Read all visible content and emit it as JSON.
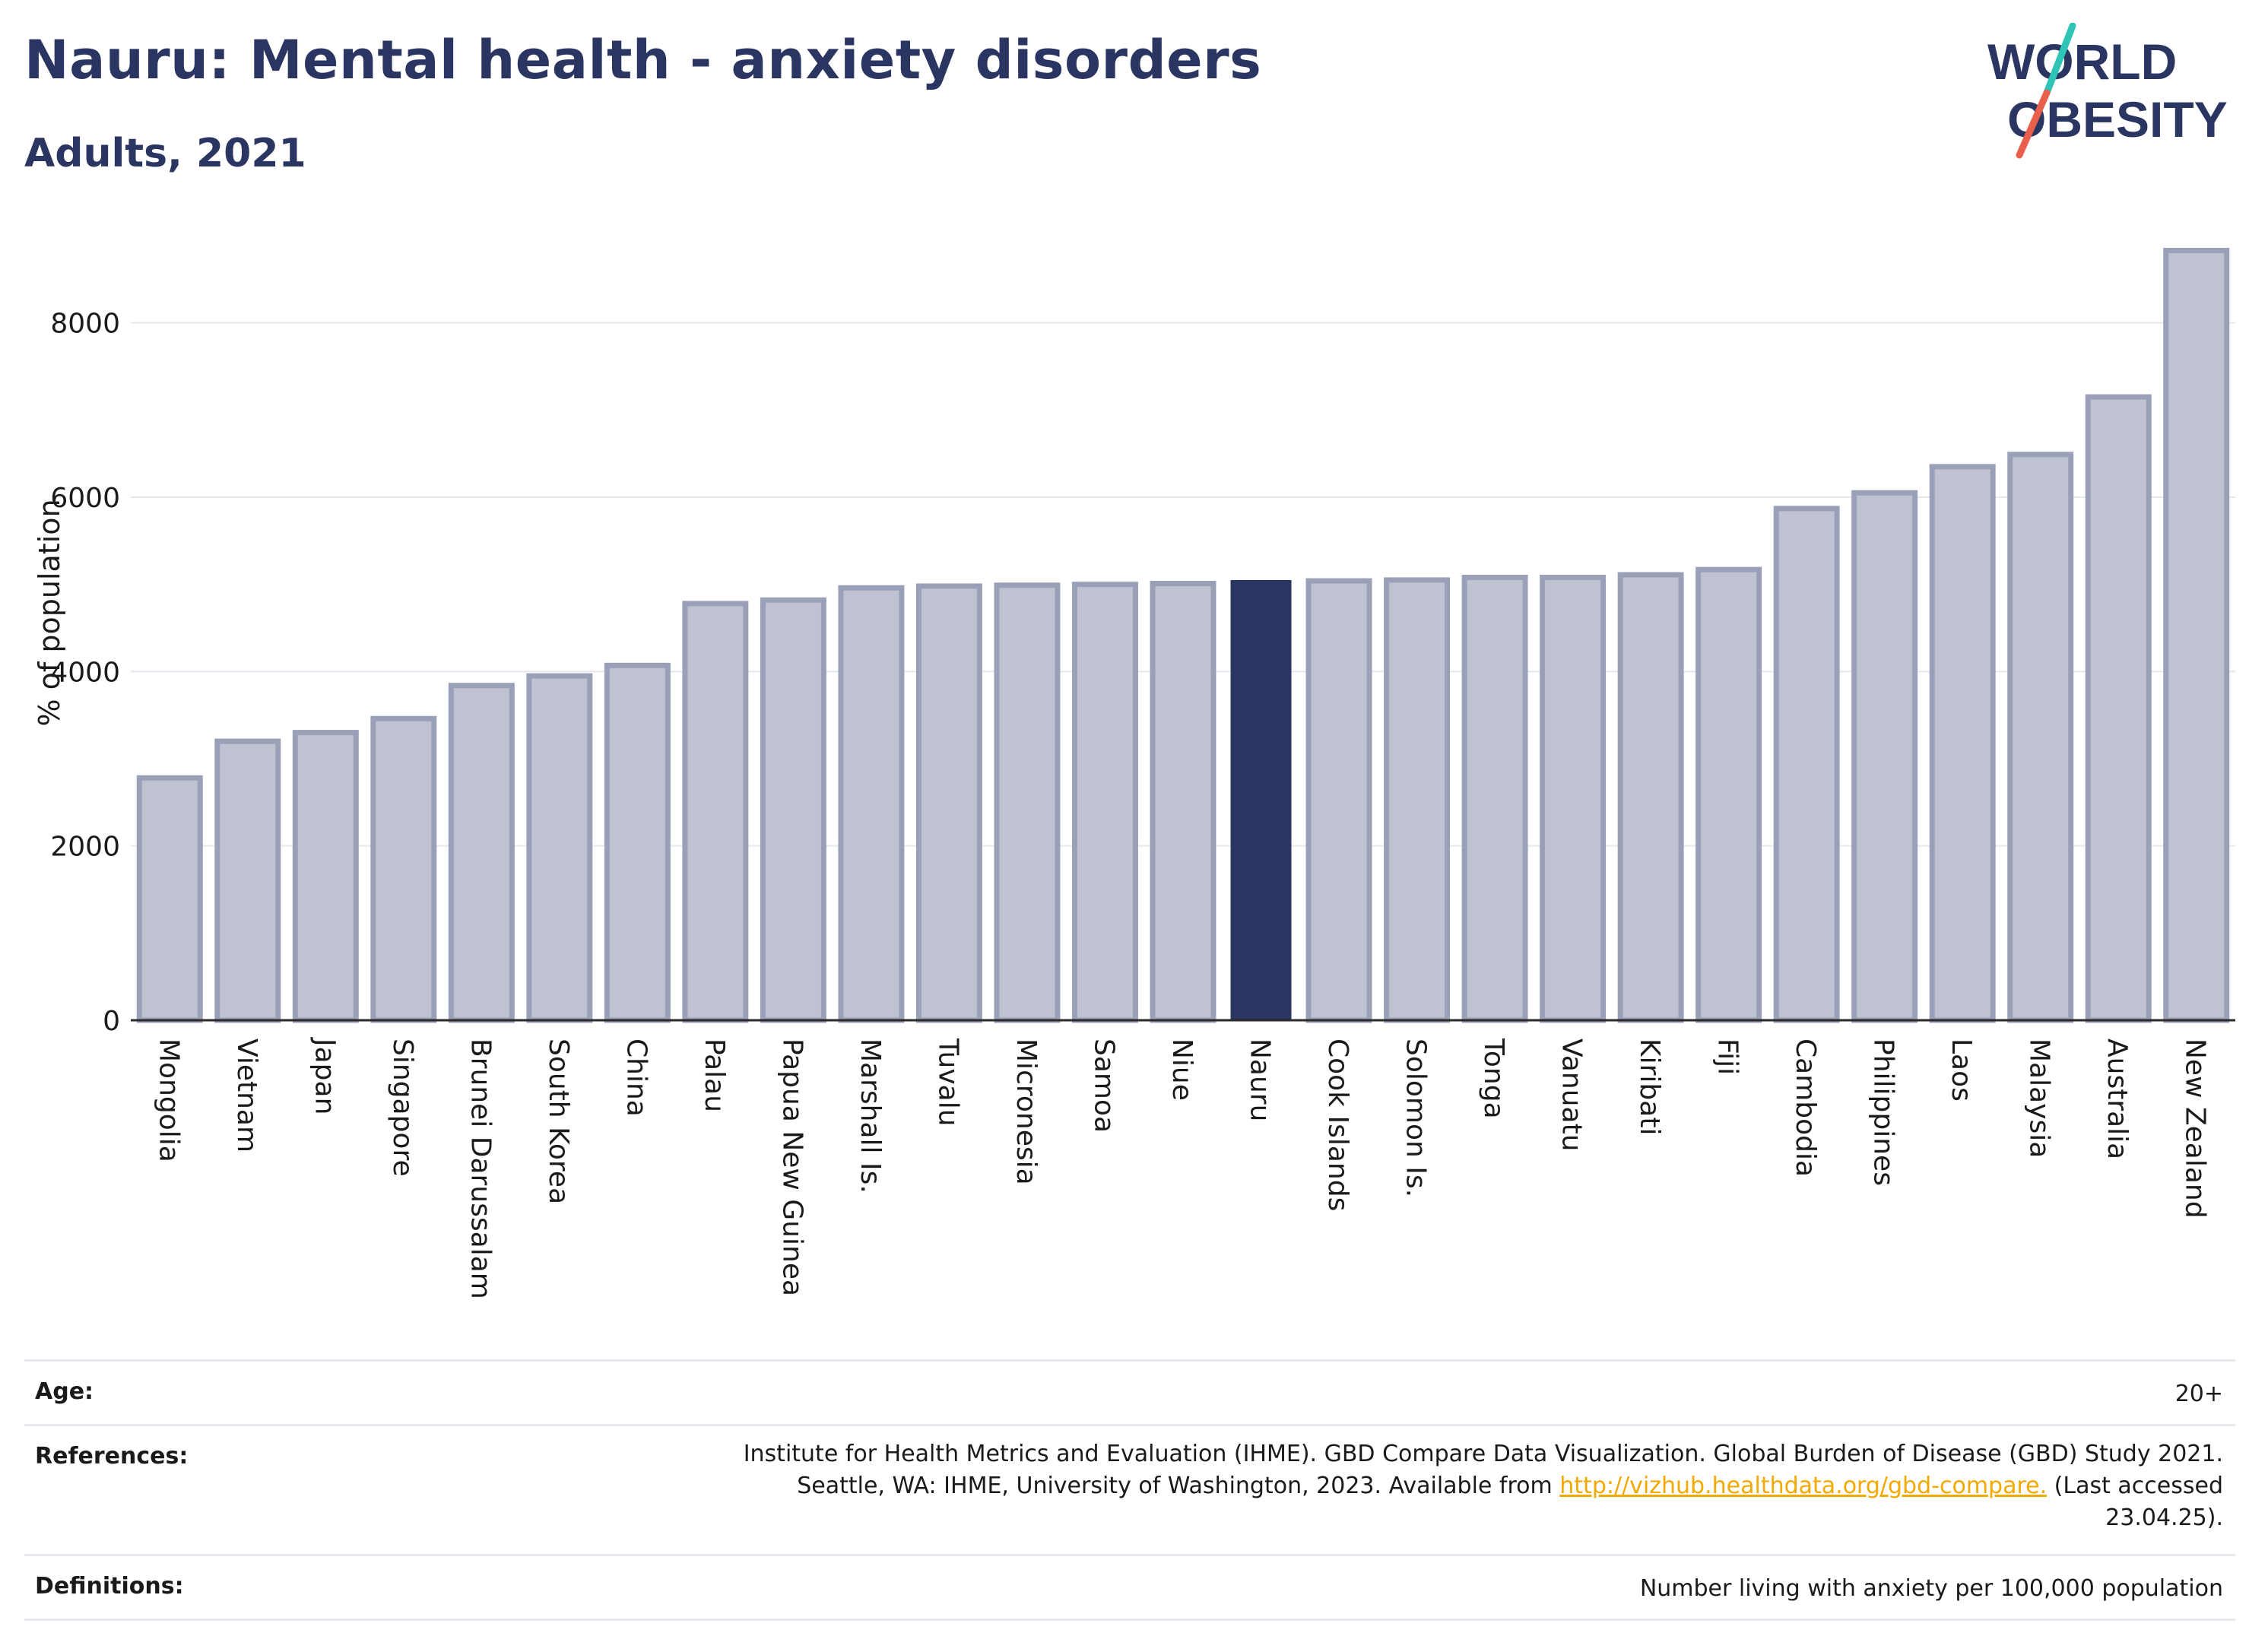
{
  "header": {
    "title": "Nauru: Mental health - anxiety disorders",
    "subtitle": "Adults, 2021"
  },
  "logo": {
    "text_top": "WORLD",
    "text_bottom": "OBESITY",
    "colors": {
      "text": "#2b3561",
      "slash_teal": "#2ec4b6",
      "slash_coral": "#e8604c"
    }
  },
  "chart_data": {
    "type": "bar",
    "ylabel": "% of population",
    "ylim": [
      0,
      9000
    ],
    "yticks": [
      0,
      2000,
      4000,
      6000,
      8000
    ],
    "grid": true,
    "highlight": "Nauru",
    "colors": {
      "bar": "#bfc3d1",
      "bar_border": "#9aa0b8",
      "highlight": "#2b3561",
      "grid": "#e6e8f0"
    },
    "categories": [
      "Mongolia",
      "Vietnam",
      "Japan",
      "Singapore",
      "Brunei Darussalam",
      "South Korea",
      "China",
      "Palau",
      "Papua New Guinea",
      "Marshall Is.",
      "Tuvalu",
      "Micronesia",
      "Samoa",
      "Niue",
      "Nauru",
      "Cook Islands",
      "Solomon Is.",
      "Tonga",
      "Vanuatu",
      "Kiribati",
      "Fiji",
      "Cambodia",
      "Philippines",
      "Laos",
      "Malaysia",
      "Australia",
      "New Zealand"
    ],
    "values": [
      2780,
      3200,
      3300,
      3460,
      3840,
      3950,
      4070,
      4780,
      4820,
      4960,
      4980,
      4990,
      5000,
      5010,
      5050,
      5040,
      5050,
      5080,
      5080,
      5110,
      5170,
      5870,
      6050,
      6350,
      6490,
      7150,
      8830
    ]
  },
  "meta": {
    "age": {
      "label": "Age:",
      "value": "20+"
    },
    "references": {
      "label": "References:",
      "text_before": "Institute for Health Metrics and Evaluation (IHME). GBD Compare Data Visualization. Global Burden of Disease (GBD) Study 2021. Seattle, WA: IHME, University of Washington, 2023. Available from ",
      "link": "http://vizhub.healthdata.org/gbd-compare.",
      "text_after": " (Last accessed 23.04.25)."
    },
    "definitions": {
      "label": "Definitions:",
      "value": "Number living with anxiety per 100,000 population"
    }
  }
}
